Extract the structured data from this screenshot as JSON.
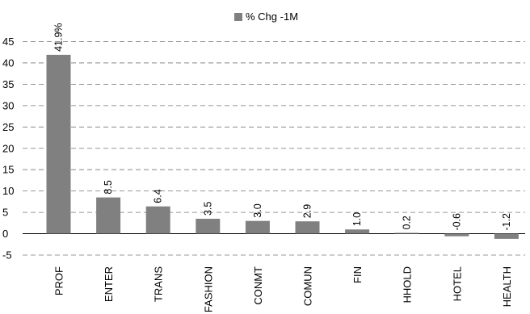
{
  "chart_data": {
    "type": "bar",
    "title": "",
    "xlabel": "",
    "ylabel": "",
    "ylim": [
      -5,
      45
    ],
    "yticks": [
      45,
      40,
      35,
      30,
      25,
      20,
      15,
      10,
      5,
      0,
      -5
    ],
    "grid": true,
    "legend_position": "top-center",
    "categories": [
      "PROF",
      "ENTER",
      "TRANS",
      "FASHION",
      "CONMT",
      "COMUN",
      "FIN",
      "HHOLD",
      "HOTEL",
      "HEALTH"
    ],
    "series": [
      {
        "name": "% Chg -1M",
        "color": "#808080",
        "values": [
          41.9,
          8.5,
          6.4,
          3.5,
          3.0,
          2.9,
          1.0,
          0.2,
          -0.6,
          -1.2
        ],
        "data_labels": [
          "41.9%",
          "8.5",
          "6.4",
          "3.5",
          "3.0",
          "2.9",
          "1.0",
          "0.2",
          "-0.6",
          "-1.2"
        ]
      }
    ]
  }
}
